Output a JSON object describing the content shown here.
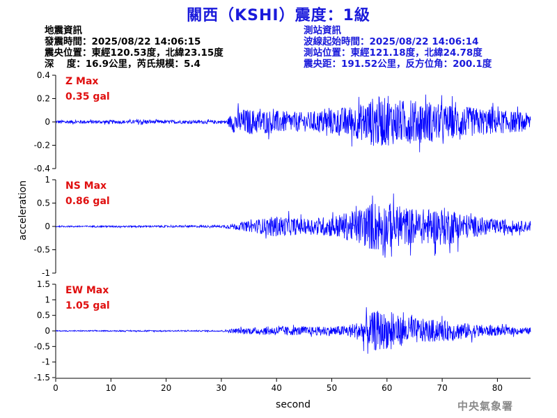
{
  "title": "關西（KSHI）震度：1級",
  "earthquake_info": {
    "heading": "地震資訊",
    "origin_time": "發震時間：2025/08/22 14:06:15",
    "epicenter": "震央位置：東經120.53度，北緯23.15度",
    "depth_magnitude": "深　 度：16.9公里，芮氏規模：5.4"
  },
  "station_info": {
    "heading": "測站資訊",
    "wave_start": "波線起始時間：2025/08/22 14:06:14",
    "location": "測站位置：東經121.18度，北緯24.78度",
    "distance": "震央距：191.52公里，反方位角：200.1度"
  },
  "colors": {
    "title": "#1a1adb",
    "trace": "#0000ff",
    "max_label": "#e01010",
    "credit": "#8a8a8a"
  },
  "credit": "中央氣象署",
  "chart_data": {
    "type": "line",
    "xlabel": "second",
    "ylabel": "acceleration",
    "xlim": [
      0,
      86
    ],
    "xticks": [
      0,
      10,
      20,
      30,
      40,
      50,
      60,
      70,
      80
    ],
    "panels": [
      {
        "component": "Z",
        "max_title": "Z Max",
        "max_value": "0.35 gal",
        "ylim": [
          -0.4,
          0.4
        ],
        "yticks": [
          0.4,
          0.2,
          0,
          -0.2,
          -0.4
        ],
        "ytick_labels": [
          "0.4",
          "0.2",
          "0",
          "-0.2",
          "-0.4"
        ],
        "amplitude_envelope": [
          {
            "t": 0,
            "amp": 0.02
          },
          {
            "t": 14,
            "amp": 0.02
          },
          {
            "t": 15.5,
            "amp": 0.04
          },
          {
            "t": 17,
            "amp": 0.02
          },
          {
            "t": 31,
            "amp": 0.02
          },
          {
            "t": 32,
            "amp": 0.12
          },
          {
            "t": 34,
            "amp": 0.15
          },
          {
            "t": 40,
            "amp": 0.13
          },
          {
            "t": 45,
            "amp": 0.11
          },
          {
            "t": 50,
            "amp": 0.15
          },
          {
            "t": 55,
            "amp": 0.2
          },
          {
            "t": 58,
            "amp": 0.3
          },
          {
            "t": 61,
            "amp": 0.26
          },
          {
            "t": 66,
            "amp": 0.24
          },
          {
            "t": 70,
            "amp": 0.2
          },
          {
            "t": 75,
            "amp": 0.17
          },
          {
            "t": 80,
            "amp": 0.14
          },
          {
            "t": 86,
            "amp": 0.1
          }
        ]
      },
      {
        "component": "NS",
        "max_title": "NS Max",
        "max_value": "0.86 gal",
        "ylim": [
          -1,
          1
        ],
        "yticks": [
          1,
          0.5,
          0,
          -0.5,
          -1
        ],
        "ytick_labels": [
          "1",
          "0.5",
          "0",
          "-0.5",
          "-1"
        ],
        "amplitude_envelope": [
          {
            "t": 0,
            "amp": 0.02
          },
          {
            "t": 30,
            "amp": 0.03
          },
          {
            "t": 32,
            "amp": 0.08
          },
          {
            "t": 36,
            "amp": 0.18
          },
          {
            "t": 40,
            "amp": 0.3
          },
          {
            "t": 45,
            "amp": 0.22
          },
          {
            "t": 50,
            "amp": 0.3
          },
          {
            "t": 54,
            "amp": 0.45
          },
          {
            "t": 58,
            "amp": 0.75
          },
          {
            "t": 61,
            "amp": 0.6
          },
          {
            "t": 66,
            "amp": 0.5
          },
          {
            "t": 71,
            "amp": 0.55
          },
          {
            "t": 75,
            "amp": 0.32
          },
          {
            "t": 80,
            "amp": 0.2
          },
          {
            "t": 86,
            "amp": 0.14
          }
        ]
      },
      {
        "component": "EW",
        "max_title": "EW Max",
        "max_value": "1.05 gal",
        "ylim": [
          -1.5,
          1.5
        ],
        "yticks": [
          1.5,
          1,
          0.5,
          0,
          -0.5,
          -1,
          -1.5
        ],
        "ytick_labels": [
          "1.5",
          "1",
          "0.5",
          "0",
          "-0.5",
          "-1",
          "-1.5"
        ],
        "amplitude_envelope": [
          {
            "t": 0,
            "amp": 0.02
          },
          {
            "t": 30,
            "amp": 0.03
          },
          {
            "t": 32,
            "amp": 0.1
          },
          {
            "t": 36,
            "amp": 0.15
          },
          {
            "t": 40,
            "amp": 0.2
          },
          {
            "t": 46,
            "amp": 0.18
          },
          {
            "t": 52,
            "amp": 0.22
          },
          {
            "t": 55,
            "amp": 0.4
          },
          {
            "t": 58,
            "amp": 0.9
          },
          {
            "t": 61,
            "amp": 0.7
          },
          {
            "t": 65,
            "amp": 0.55
          },
          {
            "t": 70,
            "amp": 0.45
          },
          {
            "t": 75,
            "amp": 0.32
          },
          {
            "t": 80,
            "amp": 0.2
          },
          {
            "t": 86,
            "amp": 0.13
          }
        ]
      }
    ]
  }
}
